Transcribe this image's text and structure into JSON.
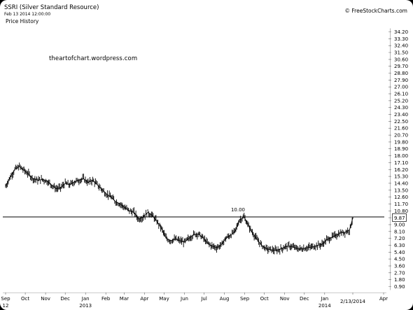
{
  "header": {
    "title": "SSRI (Silver Standard Resource)",
    "timestamp": "Feb 13 2014 12:00:00",
    "subtitle": "Price History",
    "source": "© FreeStockCharts.com",
    "watermark": "theartofchart.wordpress.com"
  },
  "chart_data": {
    "type": "line",
    "title": "SSRI (Silver Standard Resource)",
    "subtitle": "Price History",
    "xlabel": "",
    "ylabel": "",
    "ylim": [
      0.9,
      34.2
    ],
    "x_ticks": [
      {
        "label": "Sep",
        "sub": "12",
        "date": "2012-09-01"
      },
      {
        "label": "Oct",
        "sub": "",
        "date": "2012-10-01"
      },
      {
        "label": "Nov",
        "sub": "",
        "date": "2012-11-01"
      },
      {
        "label": "Dec",
        "sub": "",
        "date": "2012-12-01"
      },
      {
        "label": "Jan",
        "sub": "2013",
        "date": "2013-01-01"
      },
      {
        "label": "Feb",
        "sub": "",
        "date": "2013-02-01"
      },
      {
        "label": "Mar",
        "sub": "",
        "date": "2013-03-01"
      },
      {
        "label": "Apr",
        "sub": "",
        "date": "2013-04-01"
      },
      {
        "label": "May",
        "sub": "",
        "date": "2013-05-01"
      },
      {
        "label": "Jun",
        "sub": "",
        "date": "2013-06-01"
      },
      {
        "label": "Jul",
        "sub": "",
        "date": "2013-07-01"
      },
      {
        "label": "Aug",
        "sub": "",
        "date": "2013-08-01"
      },
      {
        "label": "Sep",
        "sub": "",
        "date": "2013-09-01"
      },
      {
        "label": "Oct",
        "sub": "",
        "date": "2013-10-01"
      },
      {
        "label": "Nov",
        "sub": "",
        "date": "2013-11-01"
      },
      {
        "label": "Dec",
        "sub": "",
        "date": "2013-12-01"
      },
      {
        "label": "Jan",
        "sub": "2014",
        "date": "2014-01-01"
      },
      {
        "label": "2/13/2014",
        "sub": "",
        "date": "2014-02-13"
      },
      {
        "label": "Apr",
        "sub": "",
        "date": "2014-04-01"
      }
    ],
    "y_ticks": [
      34.2,
      33.3,
      32.4,
      31.5,
      30.6,
      29.7,
      28.8,
      27.9,
      27.0,
      26.1,
      25.2,
      24.3,
      23.4,
      22.5,
      21.6,
      20.7,
      19.8,
      18.9,
      18.0,
      17.1,
      16.2,
      15.3,
      14.4,
      13.5,
      12.6,
      11.7,
      10.8,
      9.9,
      9.0,
      8.1,
      7.2,
      6.3,
      5.4,
      4.5,
      3.6,
      2.7,
      1.8,
      0.9
    ],
    "y_tick_labels": [
      "34.20",
      "33.30",
      "32.40",
      "31.50",
      "30.60",
      "29.70",
      "28.80",
      "27.90",
      "27.00",
      "26.10",
      "25.20",
      "24.30",
      "23.40",
      "22.50",
      "21.60",
      "20.70",
      "19.80",
      "18.90",
      "18.00",
      "17.10",
      "16.20",
      "15.30",
      "14.40",
      "13.50",
      "12.60",
      "11.70",
      "10.80",
      "9.90",
      "9.00",
      "8.10",
      "7.20",
      "6.30",
      "5.40",
      "4.50",
      "3.60",
      "2.70",
      "1.80",
      "0.90"
    ],
    "current_price": {
      "label": "9.87",
      "value": 9.87
    },
    "horizontal_line": {
      "label": "10.00",
      "value": 10.0
    },
    "series": [
      {
        "x": [
          "2012-09-01",
          "2012-09-08",
          "2012-09-15",
          "2012-09-22",
          "2012-09-29",
          "2012-10-06",
          "2012-10-13",
          "2012-10-20",
          "2012-10-27",
          "2012-11-03",
          "2012-11-10",
          "2012-11-17",
          "2012-11-24",
          "2012-12-01",
          "2012-12-08",
          "2012-12-15",
          "2012-12-22",
          "2012-12-29",
          "2013-01-05",
          "2013-01-12",
          "2013-01-19",
          "2013-01-26",
          "2013-02-02",
          "2013-02-09",
          "2013-02-16",
          "2013-02-23",
          "2013-03-02",
          "2013-03-09",
          "2013-03-16",
          "2013-03-23",
          "2013-03-30",
          "2013-04-06",
          "2013-04-13",
          "2013-04-20",
          "2013-04-27",
          "2013-05-04",
          "2013-05-11",
          "2013-05-18",
          "2013-05-25",
          "2013-06-01",
          "2013-06-08",
          "2013-06-15",
          "2013-06-22",
          "2013-06-29",
          "2013-07-06",
          "2013-07-13",
          "2013-07-20",
          "2013-07-27",
          "2013-08-03",
          "2013-08-10",
          "2013-08-17",
          "2013-08-24",
          "2013-08-31",
          "2013-09-07",
          "2013-09-14",
          "2013-09-21",
          "2013-09-28",
          "2013-10-05",
          "2013-10-12",
          "2013-10-19",
          "2013-10-26",
          "2013-11-02",
          "2013-11-09",
          "2013-11-16",
          "2013-11-23",
          "2013-11-30",
          "2013-12-07",
          "2013-12-14",
          "2013-12-21",
          "2013-12-28",
          "2014-01-04",
          "2014-01-11",
          "2014-01-18",
          "2014-01-25",
          "2014-02-01",
          "2014-02-08",
          "2014-02-13"
        ],
        "values": [
          14.0,
          15.2,
          16.2,
          16.6,
          16.1,
          15.6,
          15.0,
          14.8,
          14.9,
          14.7,
          14.2,
          13.7,
          13.8,
          14.4,
          14.2,
          14.6,
          14.8,
          15.0,
          14.5,
          14.8,
          14.2,
          13.6,
          13.0,
          12.6,
          12.0,
          11.7,
          11.2,
          10.8,
          10.6,
          9.7,
          10.0,
          10.6,
          10.2,
          9.4,
          8.5,
          7.2,
          6.9,
          7.1,
          6.9,
          6.7,
          7.2,
          7.7,
          7.8,
          7.3,
          6.6,
          6.2,
          6.0,
          6.3,
          7.2,
          7.6,
          8.1,
          9.6,
          10.0,
          8.8,
          7.8,
          6.9,
          6.2,
          5.8,
          5.7,
          5.6,
          5.8,
          6.1,
          6.2,
          6.0,
          5.8,
          5.9,
          6.0,
          6.1,
          6.3,
          6.4,
          7.0,
          7.3,
          7.6,
          7.9,
          8.0,
          8.3,
          9.87
        ]
      }
    ]
  }
}
